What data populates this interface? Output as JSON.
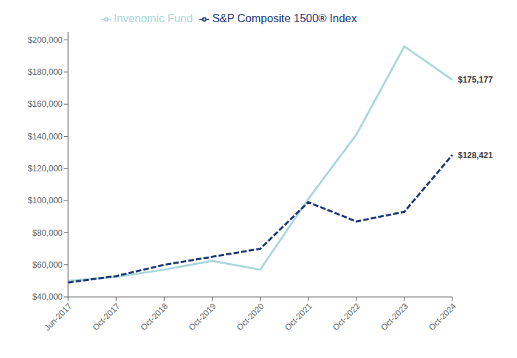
{
  "chart_data": {
    "type": "line",
    "categories": [
      "Jun-2017",
      "Oct-2017",
      "Oct-2018",
      "Oct-2019",
      "Oct-2020",
      "Oct-2021",
      "Oct-2022",
      "Oct-2023",
      "Oct-2024"
    ],
    "series": [
      {
        "name": "Invenomic Fund",
        "color": "#aad8d8",
        "line_style": "solid",
        "values": [
          50000,
          52500,
          57000,
          62500,
          57000,
          101000,
          141000,
          196000,
          175177
        ]
      },
      {
        "name": "S&P Composite 1500® Index",
        "color": "#1f3878",
        "line_style": "dashed",
        "values": [
          49000,
          53000,
          60000,
          65000,
          70000,
          99000,
          87000,
          93000,
          128421
        ]
      }
    ],
    "ylim": [
      40000,
      205000
    ],
    "yticks": [
      {
        "value": 40000,
        "label": "$40,000"
      },
      {
        "value": 60000,
        "label": "$60,000"
      },
      {
        "value": 80000,
        "label": "$80,000"
      },
      {
        "value": 100000,
        "label": "$100,000"
      },
      {
        "value": 120000,
        "label": "$120,000"
      },
      {
        "value": 140000,
        "label": "$140,000"
      },
      {
        "value": 160000,
        "label": "$160,000"
      },
      {
        "value": 180000,
        "label": "$180,000"
      },
      {
        "value": 200000,
        "label": "$200,000"
      }
    ],
    "annotations": [
      {
        "text": "$175,177",
        "x": "Oct-2024",
        "y": 175177
      },
      {
        "text": "$128,421",
        "x": "Oct-2024",
        "y": 128421
      }
    ],
    "legend": "top",
    "grid": false
  }
}
